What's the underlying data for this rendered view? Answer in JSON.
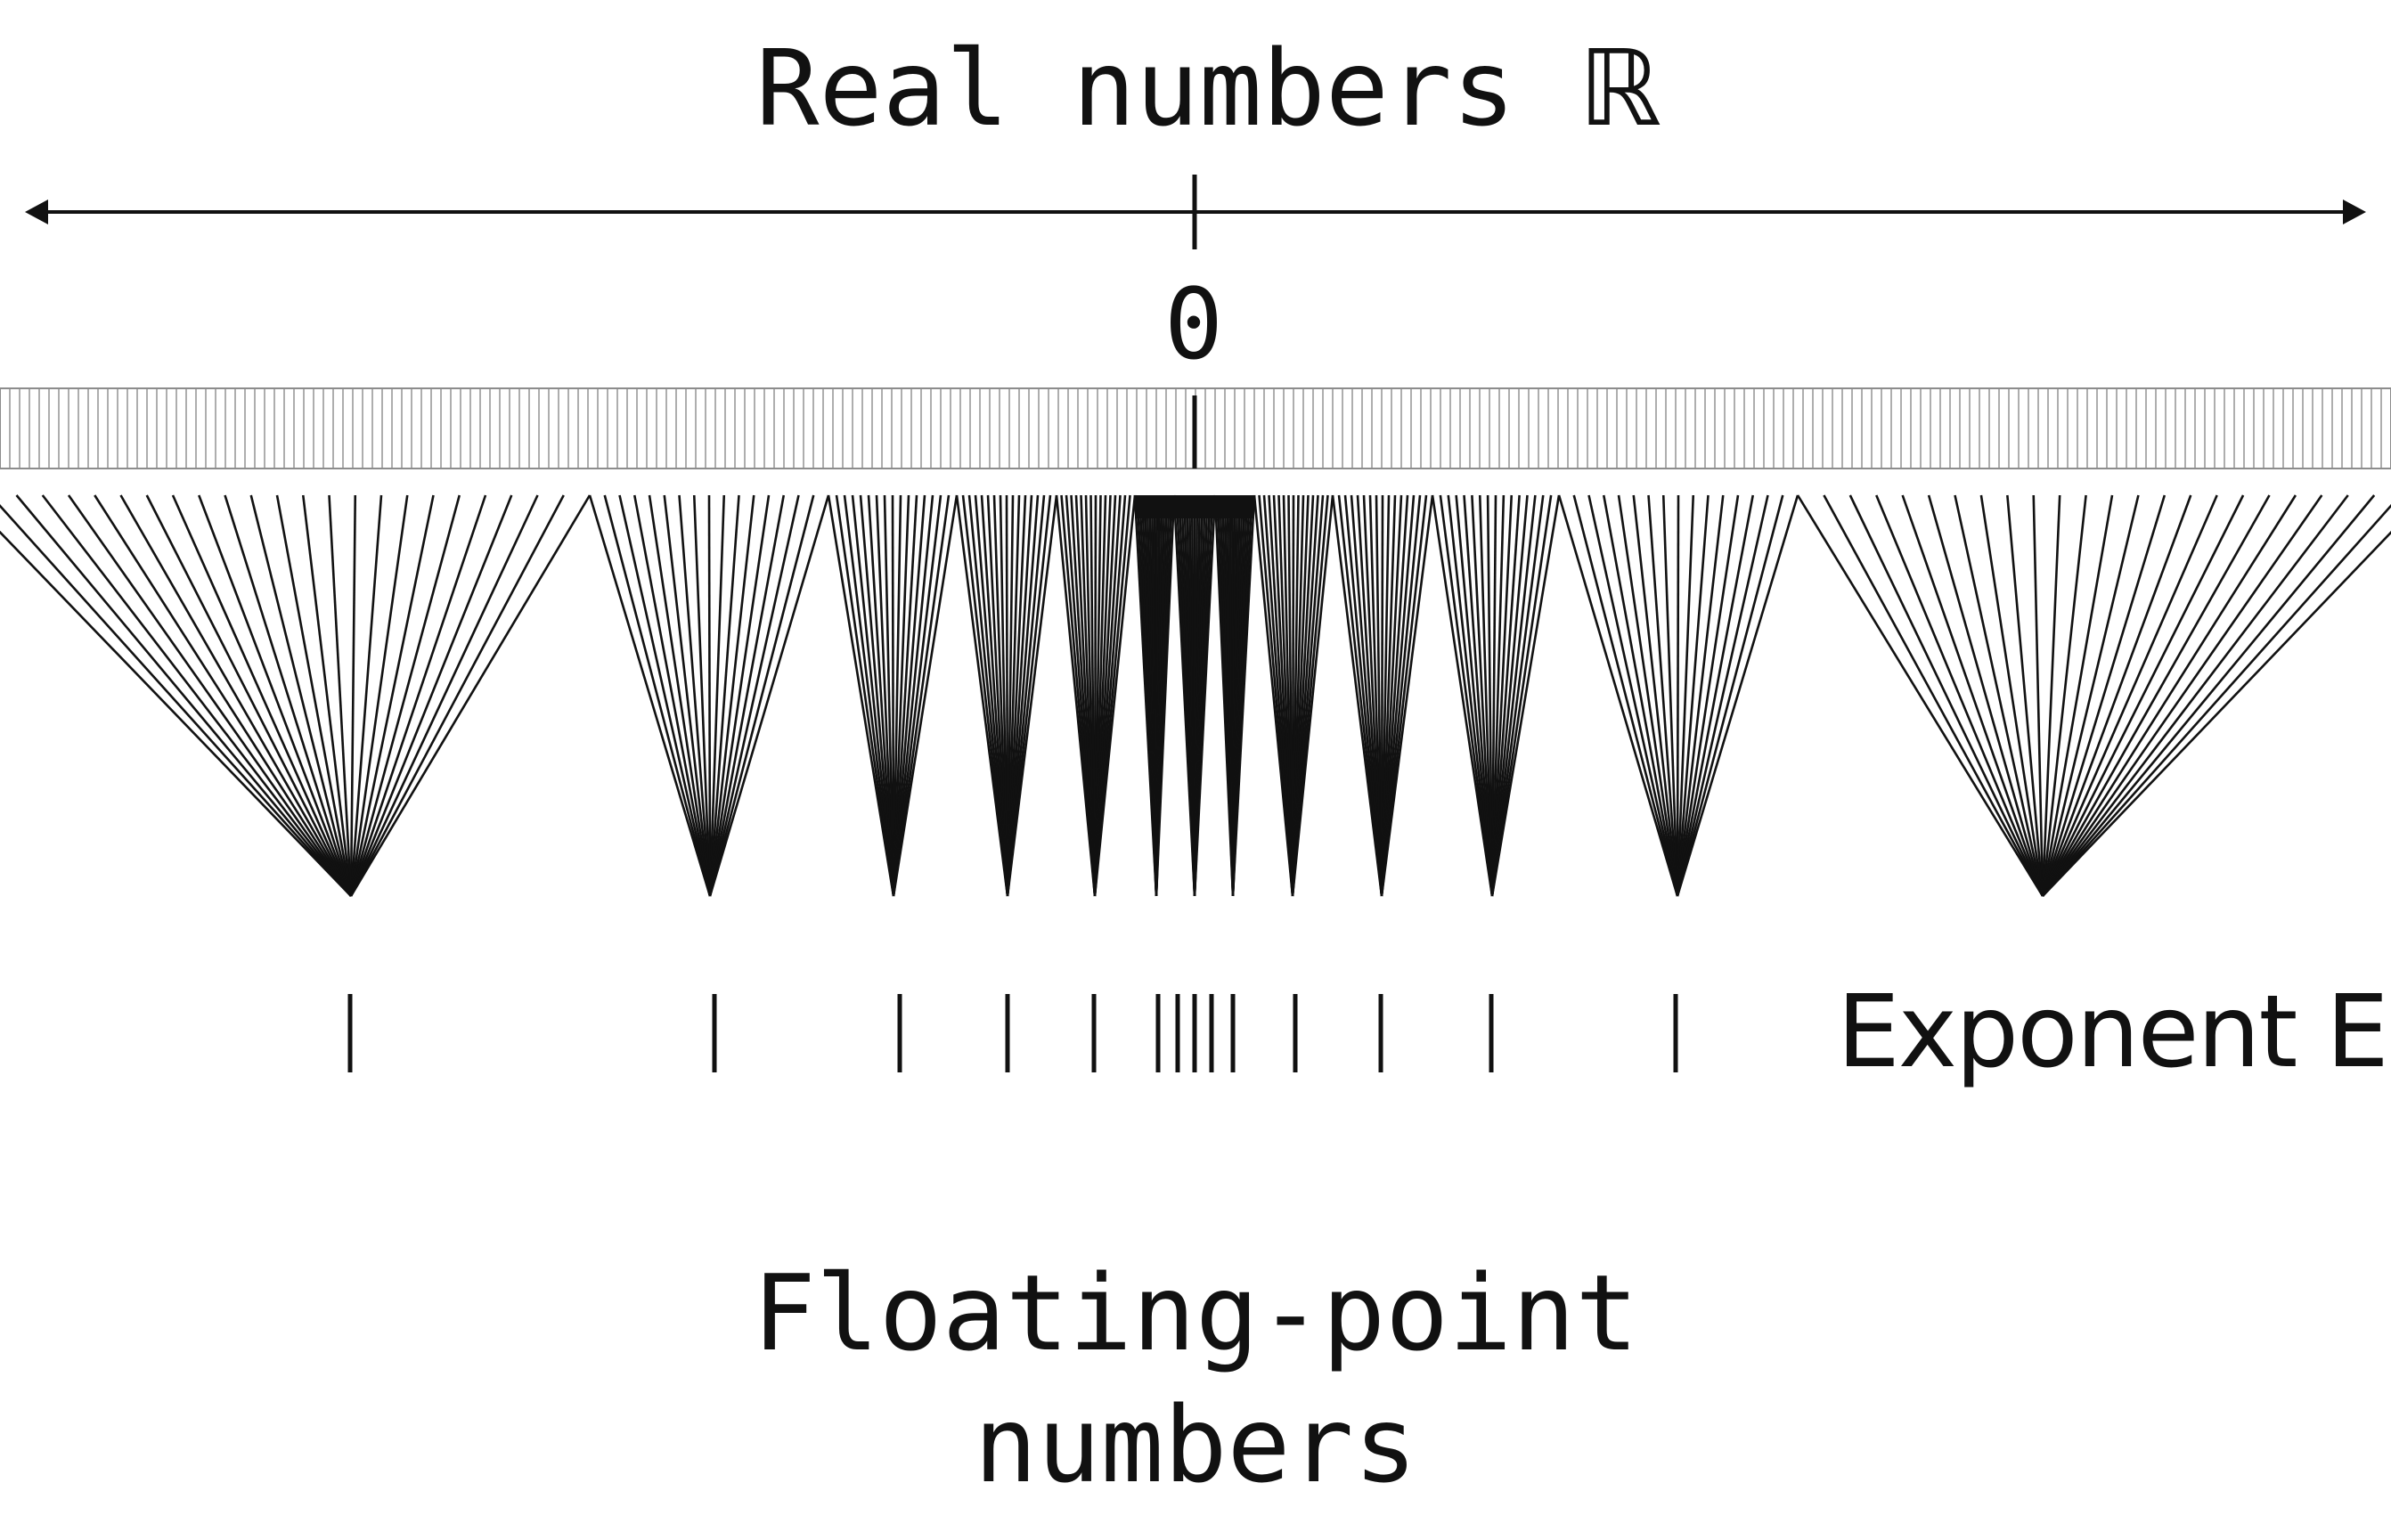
{
  "diagram": {
    "title_text": "Real numbers",
    "title_symbol": "ℝ",
    "zero_label": "0",
    "exponent_label": "Exponent E",
    "caption_line1": "Floating-point",
    "caption_line2": "numbers",
    "line_color": "#111111",
    "strip_color": "#8c8c8c",
    "background": "#ffffff"
  }
}
